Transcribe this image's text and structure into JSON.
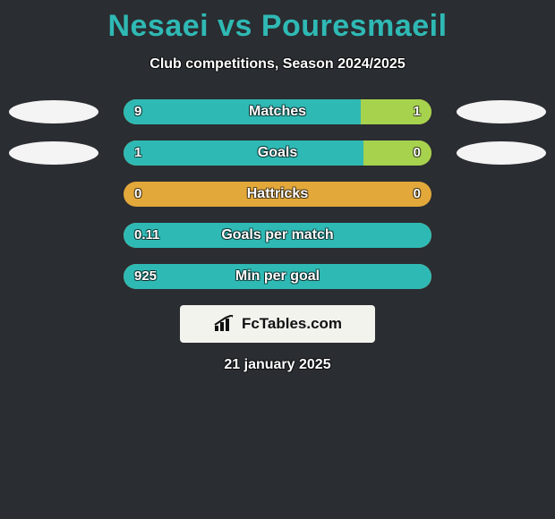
{
  "background_color": "#2a2d31",
  "title": {
    "text": "Nesaei vs Pouresmaeil",
    "color": "#2fb9b4",
    "fontsize": 34
  },
  "subtitle": {
    "text": "Club competitions, Season 2024/2025",
    "fontsize": 16
  },
  "text_outline_color": "#ffffff",
  "avatar_color": "#f4f4f4",
  "bar_style": {
    "track_color": "#e2a83a",
    "left_fill_color": "#2fb9b4",
    "right_fill_color": "#a7d24e",
    "label_fontsize": 16,
    "value_fontsize": 15,
    "height": 28,
    "radius": 14,
    "track_width": 344
  },
  "rows": [
    {
      "label": "Matches",
      "show_avatars": true,
      "left_value": "9",
      "right_value": "1",
      "left_fill_pct": 77,
      "right_fill_pct": 23
    },
    {
      "label": "Goals",
      "show_avatars": true,
      "left_value": "1",
      "right_value": "0",
      "left_fill_pct": 78,
      "right_fill_pct": 22
    },
    {
      "label": "Hattricks",
      "show_avatars": false,
      "left_value": "0",
      "right_value": "0",
      "left_fill_pct": 0,
      "right_fill_pct": 0
    },
    {
      "label": "Goals per match",
      "show_avatars": false,
      "left_value": "0.11",
      "right_value": "",
      "left_fill_pct": 100,
      "right_fill_pct": 0
    },
    {
      "label": "Min per goal",
      "show_avatars": false,
      "left_value": "925",
      "right_value": "",
      "left_fill_pct": 100,
      "right_fill_pct": 0
    }
  ],
  "brand": {
    "badge_bg": "#f3f3ee",
    "text": "FcTables.com",
    "text_color": "#111111",
    "icon_color": "#111111"
  },
  "date": "21 january 2025"
}
